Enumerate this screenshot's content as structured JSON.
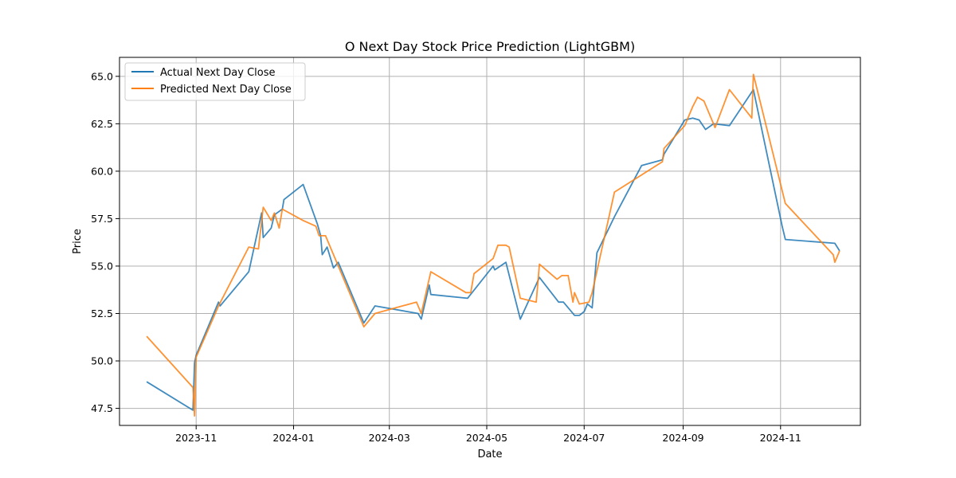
{
  "chart_data": {
    "type": "line",
    "title": "O Next Day Stock Price Prediction (LightGBM)",
    "xlabel": "Date",
    "ylabel": "Price",
    "x_axis_type": "date",
    "xlim": [
      "2023-09-14",
      "2024-12-21"
    ],
    "ylim": [
      46.6,
      66.0
    ],
    "yticks": [
      47.5,
      50.0,
      52.5,
      55.0,
      57.5,
      60.0,
      62.5,
      65.0
    ],
    "ytick_labels": [
      "47.5",
      "50.0",
      "52.5",
      "55.0",
      "57.5",
      "60.0",
      "62.5",
      "65.0"
    ],
    "xticks": [
      "2023-11-01",
      "2024-01-01",
      "2024-03-01",
      "2024-05-01",
      "2024-07-01",
      "2024-09-01",
      "2024-11-01"
    ],
    "xtick_labels": [
      "2023-11",
      "2024-01",
      "2024-03",
      "2024-05",
      "2024-07",
      "2024-09",
      "2024-11"
    ],
    "grid": true,
    "legend_position": "top-left",
    "series": [
      {
        "name": "Actual Next Day Close",
        "color": "#1f77b4",
        "points": [
          [
            "2023-10-01",
            48.9
          ],
          [
            "2023-10-30",
            47.4
          ],
          [
            "2023-10-31",
            49.9
          ],
          [
            "2023-11-01",
            50.3
          ],
          [
            "2023-11-15",
            53.1
          ],
          [
            "2023-11-16",
            52.9
          ],
          [
            "2023-12-04",
            54.7
          ],
          [
            "2023-12-12",
            57.8
          ],
          [
            "2023-12-13",
            56.5
          ],
          [
            "2023-12-18",
            57.0
          ],
          [
            "2023-12-20",
            57.7
          ],
          [
            "2023-12-25",
            58.0
          ],
          [
            "2023-12-26",
            58.5
          ],
          [
            "2024-01-07",
            59.3
          ],
          [
            "2024-01-16",
            57.2
          ],
          [
            "2024-01-18",
            56.6
          ],
          [
            "2024-01-19",
            55.6
          ],
          [
            "2024-01-22",
            56.0
          ],
          [
            "2024-01-26",
            54.9
          ],
          [
            "2024-01-29",
            55.2
          ],
          [
            "2024-02-14",
            52.0
          ],
          [
            "2024-02-21",
            52.9
          ],
          [
            "2024-03-19",
            52.5
          ],
          [
            "2024-03-21",
            52.2
          ],
          [
            "2024-03-26",
            54.0
          ],
          [
            "2024-03-27",
            53.5
          ],
          [
            "2024-04-19",
            53.3
          ],
          [
            "2024-05-05",
            55.0
          ],
          [
            "2024-05-06",
            54.8
          ],
          [
            "2024-05-13",
            55.2
          ],
          [
            "2024-05-22",
            52.2
          ],
          [
            "2024-06-03",
            54.4
          ],
          [
            "2024-06-15",
            53.1
          ],
          [
            "2024-06-18",
            53.1
          ],
          [
            "2024-06-23",
            52.6
          ],
          [
            "2024-06-25",
            52.4
          ],
          [
            "2024-06-28",
            52.4
          ],
          [
            "2024-07-01",
            52.6
          ],
          [
            "2024-07-03",
            53.0
          ],
          [
            "2024-07-06",
            52.8
          ],
          [
            "2024-07-09",
            55.7
          ],
          [
            "2024-07-20",
            57.6
          ],
          [
            "2024-08-06",
            60.3
          ],
          [
            "2024-08-19",
            60.6
          ],
          [
            "2024-08-20",
            60.9
          ],
          [
            "2024-09-02",
            62.7
          ],
          [
            "2024-09-07",
            62.8
          ],
          [
            "2024-09-11",
            62.7
          ],
          [
            "2024-09-15",
            62.2
          ],
          [
            "2024-09-20",
            62.5
          ],
          [
            "2024-09-30",
            62.4
          ],
          [
            "2024-10-15",
            64.3
          ],
          [
            "2024-11-02",
            57.1
          ],
          [
            "2024-11-04",
            56.4
          ],
          [
            "2024-12-05",
            56.2
          ],
          [
            "2024-12-08",
            55.8
          ]
        ]
      },
      {
        "name": "Predicted Next Day Close",
        "color": "#ff7f0e",
        "points": [
          [
            "2023-10-01",
            51.3
          ],
          [
            "2023-10-30",
            48.6
          ],
          [
            "2023-10-31",
            47.1
          ],
          [
            "2023-11-01",
            50.2
          ],
          [
            "2023-11-15",
            52.9
          ],
          [
            "2023-12-04",
            56.0
          ],
          [
            "2023-12-10",
            55.9
          ],
          [
            "2023-12-13",
            58.1
          ],
          [
            "2023-12-18",
            57.4
          ],
          [
            "2023-12-20",
            57.8
          ],
          [
            "2023-12-23",
            57.0
          ],
          [
            "2023-12-25",
            58.0
          ],
          [
            "2024-01-07",
            57.4
          ],
          [
            "2024-01-15",
            57.1
          ],
          [
            "2024-01-17",
            56.6
          ],
          [
            "2024-01-21",
            56.6
          ],
          [
            "2024-02-14",
            51.8
          ],
          [
            "2024-02-21",
            52.5
          ],
          [
            "2024-03-18",
            53.1
          ],
          [
            "2024-03-21",
            52.5
          ],
          [
            "2024-03-27",
            54.7
          ],
          [
            "2024-04-18",
            53.6
          ],
          [
            "2024-04-21",
            53.6
          ],
          [
            "2024-04-23",
            54.6
          ],
          [
            "2024-05-05",
            55.4
          ],
          [
            "2024-05-08",
            56.1
          ],
          [
            "2024-05-13",
            56.1
          ],
          [
            "2024-05-15",
            56.0
          ],
          [
            "2024-05-22",
            53.3
          ],
          [
            "2024-06-01",
            53.1
          ],
          [
            "2024-06-03",
            55.1
          ],
          [
            "2024-06-14",
            54.3
          ],
          [
            "2024-06-17",
            54.5
          ],
          [
            "2024-06-21",
            54.5
          ],
          [
            "2024-06-24",
            53.1
          ],
          [
            "2024-06-25",
            53.6
          ],
          [
            "2024-06-28",
            53.0
          ],
          [
            "2024-07-04",
            53.1
          ],
          [
            "2024-07-06",
            53.6
          ],
          [
            "2024-07-20",
            58.9
          ],
          [
            "2024-08-19",
            60.5
          ],
          [
            "2024-08-20",
            61.2
          ],
          [
            "2024-09-02",
            62.4
          ],
          [
            "2024-09-07",
            63.4
          ],
          [
            "2024-09-10",
            63.9
          ],
          [
            "2024-09-14",
            63.7
          ],
          [
            "2024-09-21",
            62.3
          ],
          [
            "2024-09-30",
            64.3
          ],
          [
            "2024-10-14",
            62.8
          ],
          [
            "2024-10-15",
            65.1
          ],
          [
            "2024-11-04",
            58.3
          ],
          [
            "2024-12-04",
            55.6
          ],
          [
            "2024-12-05",
            55.2
          ],
          [
            "2024-12-08",
            55.8
          ]
        ]
      }
    ]
  }
}
